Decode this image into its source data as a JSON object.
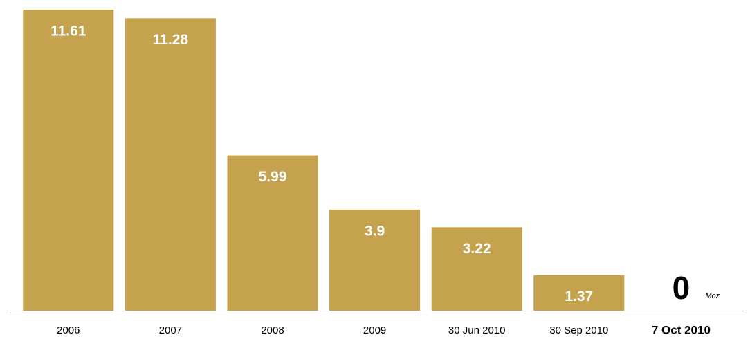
{
  "chart_data": {
    "type": "bar",
    "categories": [
      "2006",
      "2007",
      "2008",
      "2009",
      "30 Jun 2010",
      "30 Sep 2010",
      "7 Oct 2010"
    ],
    "values": [
      11.61,
      11.28,
      5.99,
      3.9,
      3.22,
      1.37,
      0
    ],
    "unit": "Moz",
    "color": "#c4a24e"
  }
}
